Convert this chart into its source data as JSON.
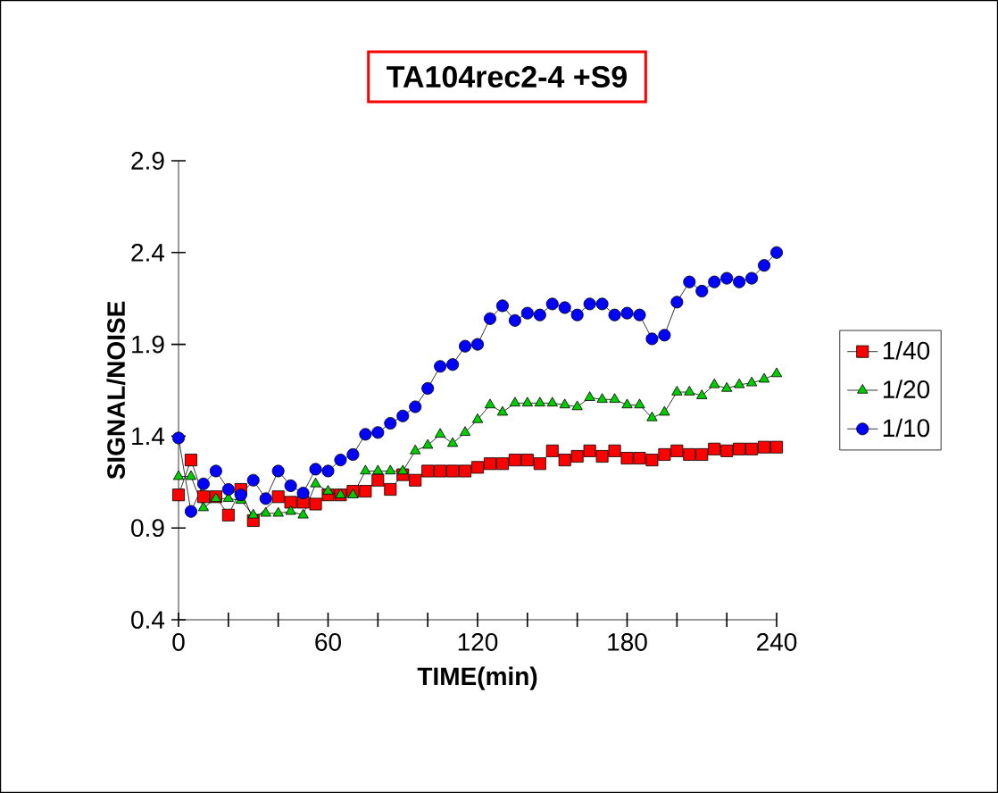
{
  "chart_data": {
    "type": "line",
    "title": "TA104rec2-4  +S9",
    "xlabel": "TIME(min)",
    "ylabel": "SIGNAL/NOISE",
    "x": [
      0,
      5,
      10,
      15,
      20,
      25,
      30,
      35,
      40,
      45,
      50,
      55,
      60,
      65,
      70,
      75,
      80,
      85,
      90,
      95,
      100,
      105,
      110,
      115,
      120,
      125,
      130,
      135,
      140,
      145,
      150,
      155,
      160,
      165,
      170,
      175,
      180,
      185,
      190,
      195,
      200,
      205,
      210,
      215,
      220,
      225,
      230,
      235,
      240
    ],
    "series": [
      {
        "name": "1/40",
        "color": "#ff0000",
        "marker": "square",
        "values": [
          1.08,
          1.27,
          1.07,
          1.07,
          0.97,
          1.11,
          0.94,
          null,
          1.07,
          1.04,
          1.04,
          1.03,
          1.08,
          1.08,
          1.1,
          1.1,
          1.16,
          1.11,
          1.19,
          1.16,
          1.21,
          1.21,
          1.21,
          1.21,
          1.23,
          1.25,
          1.25,
          1.27,
          1.27,
          1.25,
          1.32,
          1.27,
          1.29,
          1.32,
          1.29,
          1.32,
          1.28,
          1.28,
          1.27,
          1.3,
          1.32,
          1.3,
          1.3,
          1.33,
          1.32,
          1.33,
          1.33,
          1.34,
          1.34
        ]
      },
      {
        "name": "1/20",
        "color": "#00cc00",
        "marker": "triangle",
        "values": [
          1.18,
          1.18,
          1.01,
          1.06,
          1.06,
          1.05,
          0.97,
          0.98,
          0.98,
          0.99,
          0.97,
          1.14,
          1.1,
          1.08,
          1.08,
          1.21,
          1.21,
          1.21,
          1.21,
          1.32,
          1.35,
          1.41,
          1.36,
          1.42,
          1.49,
          1.57,
          1.53,
          1.58,
          1.58,
          1.58,
          1.58,
          1.57,
          1.56,
          1.61,
          1.6,
          1.6,
          1.57,
          1.57,
          1.5,
          1.53,
          1.64,
          1.64,
          1.62,
          1.68,
          1.66,
          1.68,
          1.69,
          1.71,
          1.74
        ]
      },
      {
        "name": "1/10",
        "color": "#0000ff",
        "marker": "circle",
        "values": [
          1.39,
          0.99,
          1.14,
          1.21,
          1.11,
          1.08,
          1.16,
          1.06,
          1.21,
          1.13,
          1.09,
          1.22,
          1.21,
          1.27,
          1.3,
          1.41,
          1.42,
          1.47,
          1.51,
          1.56,
          1.66,
          1.78,
          1.79,
          1.89,
          1.9,
          2.04,
          2.11,
          2.03,
          2.07,
          2.06,
          2.12,
          2.1,
          2.06,
          2.12,
          2.12,
          2.06,
          2.07,
          2.06,
          1.93,
          1.95,
          2.13,
          2.24,
          2.19,
          2.24,
          2.26,
          2.24,
          2.26,
          2.33,
          2.4
        ]
      }
    ],
    "xlim": [
      0,
      240
    ],
    "xticks": [
      0,
      60,
      120,
      180,
      240
    ],
    "ylim": [
      0.4,
      2.9
    ],
    "yticks": [
      0.4,
      0.9,
      1.4,
      1.9,
      2.4,
      2.9
    ],
    "legend": "right",
    "grid": false,
    "line_style": "solid"
  }
}
